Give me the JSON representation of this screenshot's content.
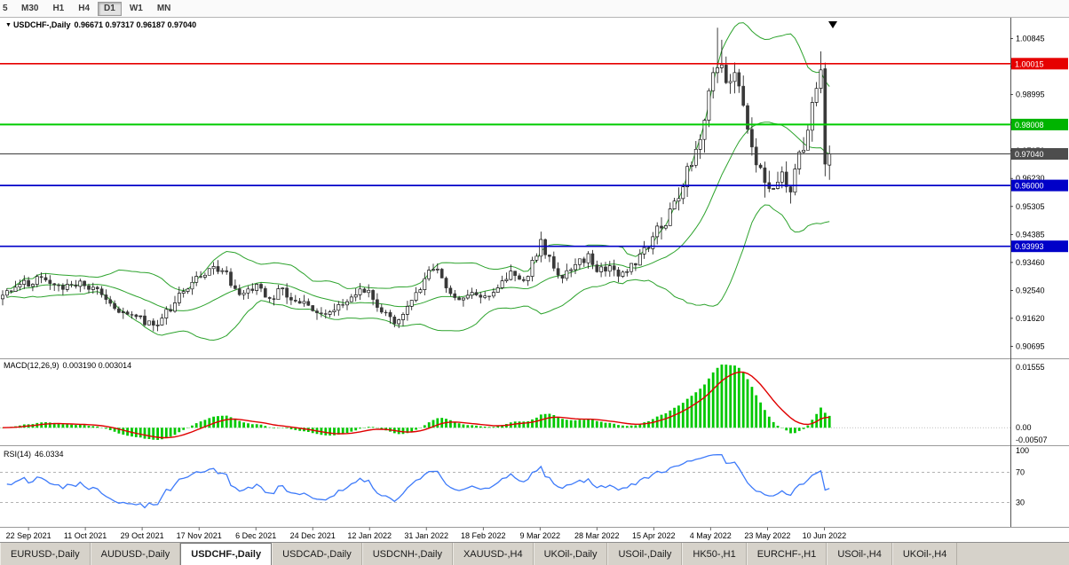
{
  "toolbar": {
    "clipped_label": "5",
    "timeframes": [
      "M30",
      "H1",
      "H4",
      "D1",
      "W1",
      "MN"
    ],
    "active_timeframe": "D1"
  },
  "chart": {
    "symbol_marker": "▼",
    "title": "USDCHF-,Daily",
    "ohlc": "0.96671 0.97317 0.96187 0.97040",
    "price_axis_labels": [
      "1.00845",
      "0.99920",
      "0.98995",
      "0.98075",
      "0.97150",
      "0.96230",
      "0.95305",
      "0.94385",
      "0.93460",
      "0.92540",
      "0.91620",
      "0.90695"
    ],
    "price_lines": [
      {
        "price": 1.00015,
        "label": "1.00015",
        "color": "#e60000",
        "badge": "#e60000",
        "width": 1.7
      },
      {
        "price": 0.98008,
        "label": "0.98008",
        "color": "#00cc00",
        "badge": "#00b400",
        "width": 2
      },
      {
        "price": 0.9704,
        "label": "0.97040",
        "color": "#3c3c3c",
        "badge": "#4d4d4d",
        "width": 1
      },
      {
        "price": 0.96,
        "label": "0.96000",
        "color": "#0000c8",
        "badge": "#0000c8",
        "width": 1.7
      },
      {
        "price": 0.93993,
        "label": "0.93993",
        "color": "#0000c8",
        "badge": "#0000c8",
        "width": 1.7
      }
    ]
  },
  "macd_panel": {
    "label": "MACD(12,26,9)",
    "values": "0.003190 0.003014",
    "axis_top": "0.01555",
    "axis_zero": "0.00",
    "axis_bottom": "-0.00507"
  },
  "rsi_panel": {
    "label": "RSI(14)",
    "value": "46.0334",
    "axis_labels": [
      "100",
      "70",
      "30"
    ],
    "level_lines": [
      70,
      30
    ]
  },
  "date_axis": [
    "22 Sep 2021",
    "11 Oct 2021",
    "29 Oct 2021",
    "17 Nov 2021",
    "6 Dec 2021",
    "24 Dec 2021",
    "12 Jan 2022",
    "31 Jan 2022",
    "18 Feb 2022",
    "9 Mar 2022",
    "28 Mar 2022",
    "15 Apr 2022",
    "4 May 2022",
    "23 May 2022",
    "10 Jun 2022"
  ],
  "tabs": {
    "items": [
      "EURUSD-,Daily",
      "AUDUSD-,Daily",
      "USDCHF-,Daily",
      "USDCAD-,Daily",
      "USDCNH-,Daily",
      "XAUUSD-,H4",
      "UKOil-,Daily",
      "USOil-,Daily",
      "HK50-,H1",
      "EURCHF-,H1",
      "USOil-,H4",
      "UKOil-,H4"
    ],
    "active": "USDCHF-,Daily"
  },
  "chart_data": {
    "type": "candlestick",
    "symbol": "USDCHF",
    "timeframe": "Daily",
    "bar_count": 193,
    "first_label_bar": 6,
    "label_step_bars": 13.2,
    "price_range": [
      0.903,
      1.015
    ],
    "last_bar": {
      "open": 0.96671,
      "high": 0.97317,
      "low": 0.96187,
      "close": 0.9704
    },
    "crash_bar": {
      "open": 0.9985,
      "high": 1.0005,
      "low": 0.963,
      "close": 0.967
    },
    "close_path_anchors": [
      [
        0,
        0.924
      ],
      [
        4,
        0.9268
      ],
      [
        9,
        0.93
      ],
      [
        13,
        0.9268
      ],
      [
        19,
        0.9282
      ],
      [
        23,
        0.9232
      ],
      [
        27,
        0.9195
      ],
      [
        32,
        0.9162
      ],
      [
        35,
        0.914
      ],
      [
        38,
        0.9178
      ],
      [
        42,
        0.9252
      ],
      [
        46,
        0.93
      ],
      [
        49,
        0.9342
      ],
      [
        52,
        0.93
      ],
      [
        55,
        0.9252
      ],
      [
        59,
        0.9262
      ],
      [
        62,
        0.923
      ],
      [
        65,
        0.9252
      ],
      [
        68,
        0.9222
      ],
      [
        72,
        0.9188
      ],
      [
        75,
        0.9165
      ],
      [
        78,
        0.9212
      ],
      [
        82,
        0.924
      ],
      [
        85,
        0.9252
      ],
      [
        88,
        0.9192
      ],
      [
        91,
        0.9148
      ],
      [
        95,
        0.9212
      ],
      [
        98,
        0.9292
      ],
      [
        100,
        0.933
      ],
      [
        103,
        0.9272
      ],
      [
        106,
        0.9222
      ],
      [
        109,
        0.9246
      ],
      [
        112,
        0.923
      ],
      [
        115,
        0.9272
      ],
      [
        118,
        0.9312
      ],
      [
        121,
        0.9272
      ],
      [
        125,
        0.9418
      ],
      [
        127,
        0.9352
      ],
      [
        130,
        0.9292
      ],
      [
        133,
        0.933
      ],
      [
        136,
        0.9372
      ],
      [
        138,
        0.9312
      ],
      [
        141,
        0.9332
      ],
      [
        144,
        0.9302
      ],
      [
        147,
        0.9342
      ],
      [
        151,
        0.942
      ],
      [
        154,
        0.9492
      ],
      [
        157,
        0.9572
      ],
      [
        160,
        0.9682
      ],
      [
        162,
        0.9762
      ],
      [
        164,
        0.9902
      ],
      [
        166,
        1.0012
      ],
      [
        168,
        0.9932
      ],
      [
        170,
        0.9992
      ],
      [
        172,
        0.9852
      ],
      [
        174,
        0.9702
      ],
      [
        177,
        0.9622
      ],
      [
        179,
        0.9582
      ],
      [
        181,
        0.9632
      ],
      [
        183,
        0.9602
      ],
      [
        185,
        0.9682
      ],
      [
        187,
        0.9802
      ],
      [
        189,
        0.9922
      ],
      [
        190,
        0.9998
      ],
      [
        191,
        0.9975
      ],
      [
        192,
        0.9704
      ]
    ],
    "forced_highs": {
      "125": 0.9448,
      "166": 1.012,
      "167": 1.008,
      "190": 1.0042
    },
    "forced_lows": {
      "35": 0.9128,
      "91": 0.9135,
      "177": 0.956
    },
    "indicators": {
      "bollinger": {
        "period": 20,
        "deviation": 2
      },
      "macd": {
        "fast": 12,
        "slow": 26,
        "signal": 9,
        "current": 0.00319,
        "current_signal": 0.003014
      },
      "rsi": {
        "period": 14,
        "current": 46.0334
      }
    },
    "colors": {
      "candle_bull": "#ffffff",
      "candle_bear": "#383838",
      "candle_border": "#111111",
      "bollinger": "#2da32d",
      "macd_hist": "#00c800",
      "macd_signal": "#e00000",
      "rsi": "#3e7bfa",
      "separator": "#9a9a9a"
    }
  }
}
